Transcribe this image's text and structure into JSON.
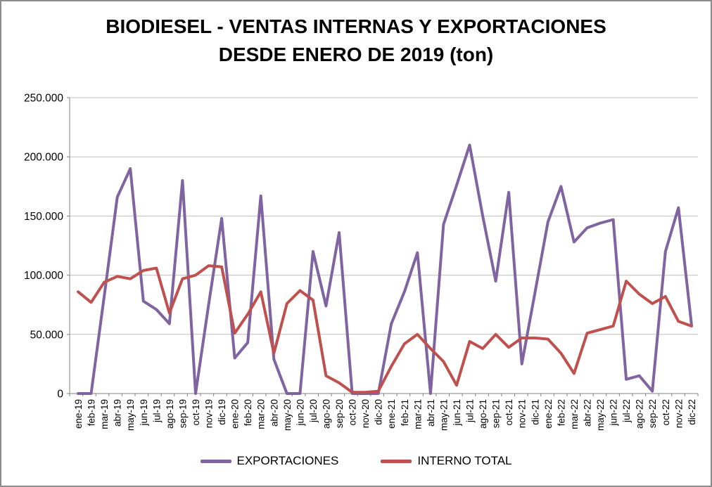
{
  "chart": {
    "title": {
      "line1": "BIODIESEL - VENTAS INTERNAS Y EXPORTACIONES",
      "line2": "DESDE ENERO DE 2019 (ton)"
    },
    "colors": {
      "exportaciones": "#8064A2",
      "interno_total": "#C0504D",
      "gridline": "#BFBFBF",
      "axis": "#808080",
      "text": "#000000",
      "frame_border": "#8C8C8C",
      "background": "#FFFFFF"
    },
    "y_axis": {
      "tick_labels": [
        "0",
        "50.000",
        "100.000",
        "150.000",
        "200.000",
        "250.000"
      ],
      "min": 0,
      "max": 250000,
      "step": 50000
    },
    "legend": {
      "items": [
        "EXPORTACIONES",
        "INTERNO TOTAL"
      ],
      "position": "bottom"
    }
  },
  "chart_data": {
    "type": "line",
    "title": "BIODIESEL - VENTAS INTERNAS Y EXPORTACIONES DESDE ENERO DE 2019 (ton)",
    "xlabel": "",
    "ylabel": "",
    "ylim": [
      0,
      250000
    ],
    "grid": true,
    "legend_position": "bottom",
    "categories": [
      "ene-19",
      "feb-19",
      "mar-19",
      "abr-19",
      "may-19",
      "jun-19",
      "jul-19",
      "ago-19",
      "sep-19",
      "oct-19",
      "nov-19",
      "dic-19",
      "ene-20",
      "feb-20",
      "mar-20",
      "abr-20",
      "may-20",
      "jun-20",
      "jul-20",
      "ago-20",
      "sep-20",
      "oct-20",
      "nov-20",
      "dic-20",
      "ene-21",
      "feb-21",
      "mar-21",
      "abr-21",
      "may-21",
      "jun-21",
      "jul-21",
      "ago-21",
      "sep-21",
      "oct-21",
      "nov-21",
      "dic-21",
      "ene-22",
      "feb-22",
      "mar-22",
      "abr-22",
      "may-22",
      "jun-22",
      "jul-22",
      "ago-22",
      "sep-22",
      "oct-22",
      "nov-22",
      "dic-22"
    ],
    "series": [
      {
        "name": "EXPORTACIONES",
        "color": "#8064A2",
        "values": [
          0,
          0,
          82000,
          166000,
          190000,
          78000,
          71000,
          59000,
          180000,
          0,
          75000,
          148000,
          30000,
          43000,
          167000,
          29000,
          0,
          0,
          120000,
          74000,
          136000,
          0,
          0,
          0,
          59000,
          86000,
          119000,
          0,
          143000,
          176000,
          210000,
          150000,
          95000,
          170000,
          25000,
          85000,
          145000,
          175000,
          128000,
          140000,
          144000,
          147000,
          12000,
          15000,
          2000,
          120000,
          157000,
          58000
        ]
      },
      {
        "name": "INTERNO TOTAL",
        "color": "#C0504D",
        "values": [
          86000,
          77000,
          94000,
          99000,
          97000,
          104000,
          106000,
          68000,
          97000,
          100000,
          108000,
          107000,
          51000,
          67000,
          86000,
          34000,
          76000,
          87000,
          79000,
          15000,
          9000,
          1000,
          1000,
          2000,
          23000,
          42000,
          50000,
          38000,
          27000,
          7000,
          44000,
          38000,
          50000,
          39000,
          47000,
          47000,
          46000,
          34000,
          17000,
          51000,
          54000,
          57000,
          95000,
          84000,
          76000,
          82000,
          61000,
          57000
        ]
      }
    ]
  }
}
